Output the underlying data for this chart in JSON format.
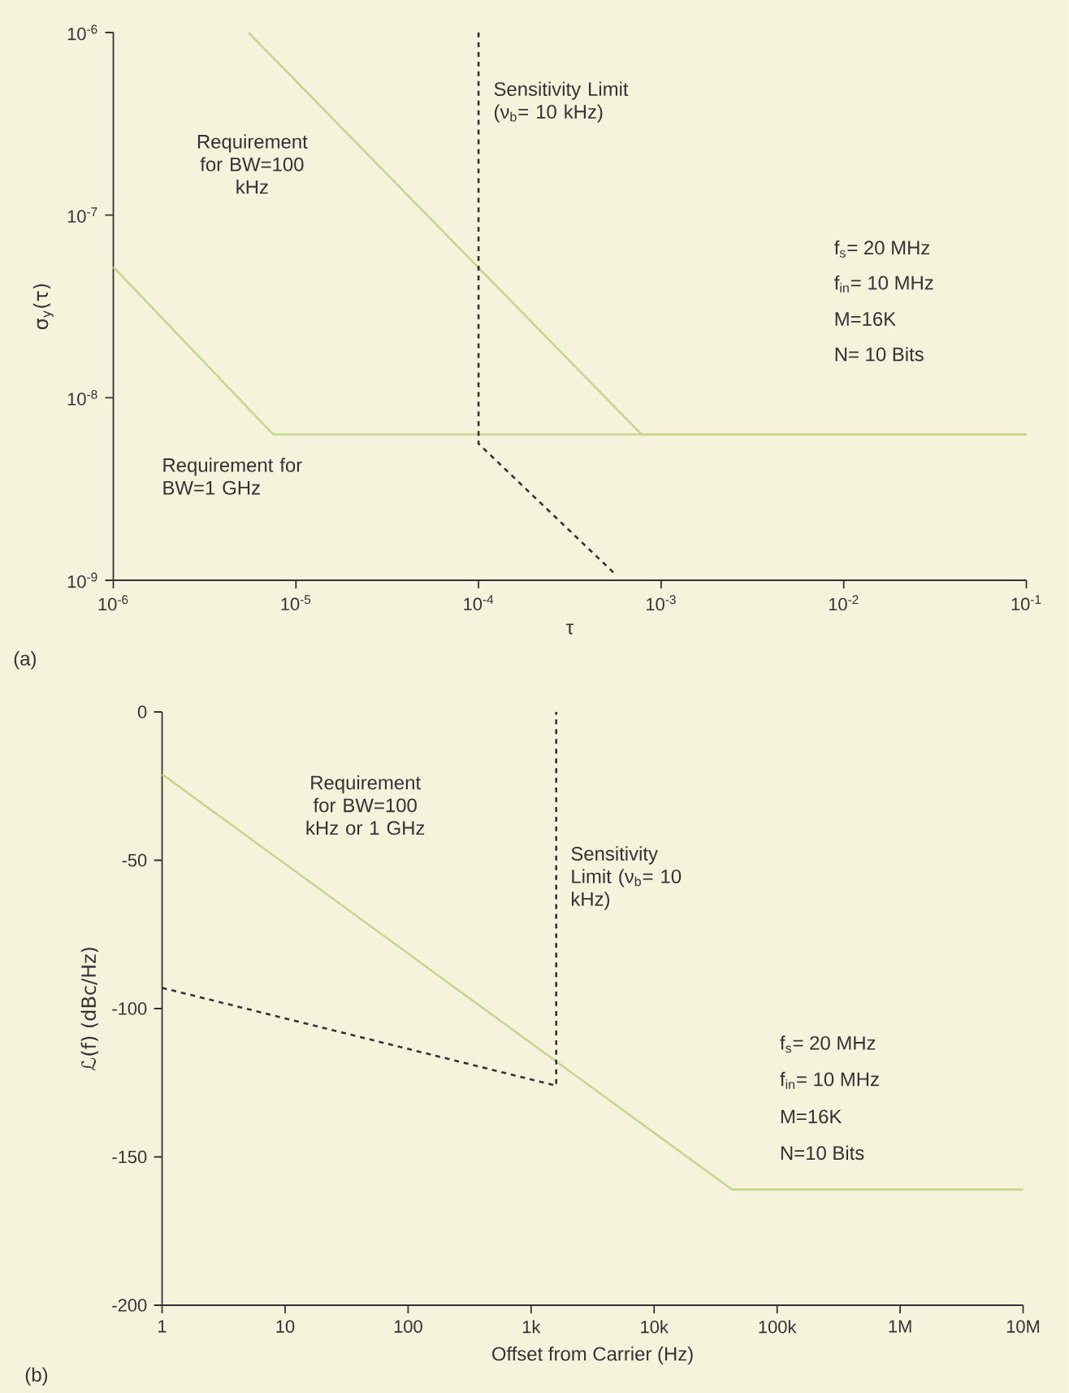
{
  "chart_data": [
    {
      "type": "line",
      "xlabel": "τ",
      "ylabel": "σ$_{y}$(τ)",
      "log": "xy",
      "xlim": [
        1e-06,
        0.1
      ],
      "ylim": [
        1e-09,
        1e-06
      ],
      "xticks": [
        {
          "value": 1e-06,
          "label": "10$^{-6}$"
        },
        {
          "value": 1e-05,
          "label": "10$^{-5}$"
        },
        {
          "value": 0.0001,
          "label": "10$^{-4}$"
        },
        {
          "value": 0.001,
          "label": "10$^{-3}$"
        },
        {
          "value": 0.01,
          "label": "10$^{-2}$"
        },
        {
          "value": 0.1,
          "label": "10$^{-1}$"
        }
      ],
      "yticks": [
        {
          "value": 1e-09,
          "label": "10$^{-9}$"
        },
        {
          "value": 1e-08,
          "label": "10$^{-8}$"
        },
        {
          "value": 1e-07,
          "label": "10$^{-7}$"
        },
        {
          "value": 1e-06,
          "label": "10$^{-6}$"
        }
      ],
      "series": [
        {
          "color": "#c5d68e",
          "line_style": "solid",
          "x": [
            5.5e-06,
            0.00078,
            0.1
          ],
          "values": [
            1e-06,
            6.3e-09,
            6.3e-09
          ]
        },
        {
          "color": "#c5d68e",
          "line_style": "solid",
          "x": [
            1e-06,
            7.5e-06,
            0.1
          ],
          "values": [
            5.2e-08,
            6.3e-09,
            6.3e-09
          ]
        },
        {
          "color": "#333333",
          "line_style": "dashed",
          "x": [
            0.0001,
            0.0001,
            0.00055
          ],
          "values": [
            1e-06,
            5.6e-09,
            1.1e-09
          ]
        }
      ],
      "annotations": [
        "(a)",
        "Requirement for BW=100 kHz",
        "Requirement for BW=1 GHz",
        "Sensitivity Limit (ν$_{b}$= 10 kHz)",
        "f$_{s}$= 20 MHz",
        "f$_{in}$= 10 MHz",
        "M=16K",
        "N= 10 Bits"
      ]
    },
    {
      "type": "line",
      "xlabel": "Offset from Carrier (Hz)",
      "ylabel": "ℒ(f)  (dBc/Hz)",
      "log": "x",
      "xlim": [
        1,
        10000000.0
      ],
      "ylim": [
        -200,
        0
      ],
      "xticks": [
        {
          "value": 1,
          "label": "1"
        },
        {
          "value": 10,
          "label": "10"
        },
        {
          "value": 100,
          "label": "100"
        },
        {
          "value": 1000,
          "label": "1k"
        },
        {
          "value": 10000,
          "label": "10k"
        },
        {
          "value": 100000,
          "label": "100k"
        },
        {
          "value": 1000000,
          "label": "1M"
        },
        {
          "value": 10000000,
          "label": "10M"
        }
      ],
      "yticks": [
        -200,
        -150,
        -100,
        -50,
        0
      ],
      "series": [
        {
          "color": "#c5d68e",
          "line_style": "solid",
          "x": [
            1,
            43000,
            10000000
          ],
          "values": [
            -21,
            -161,
            -161
          ]
        },
        {
          "color": "#333333",
          "line_style": "dashed",
          "x": [
            1,
            1600,
            1600
          ],
          "values": [
            -93,
            -126,
            0
          ]
        }
      ],
      "annotations": [
        "(b)",
        "Requirement for BW=100 kHz or 1 GHz",
        "Sensitivity Limit (ν$_{b}$= 10 kHz)",
        "f$_{s}$= 20 MHz",
        "f$_{in}$= 10 MHz",
        "M=16K",
        "N=10 Bits"
      ]
    }
  ]
}
